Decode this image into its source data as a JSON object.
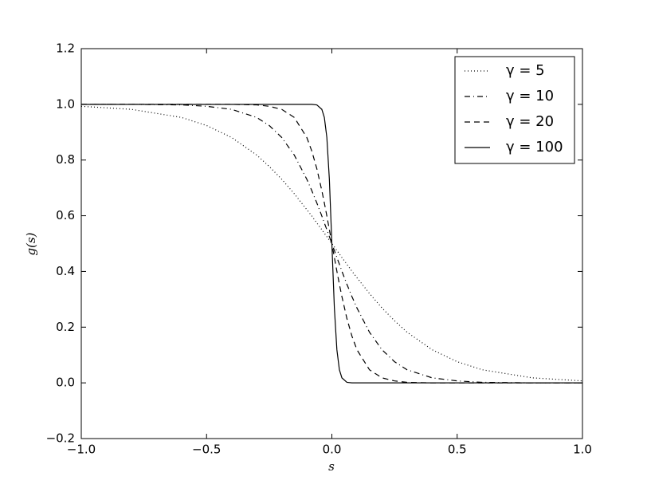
{
  "chart_data": {
    "type": "line",
    "xlabel": "s",
    "ylabel": "g(s)",
    "x": [
      -1,
      -0.8,
      -0.6,
      -0.5,
      -0.4,
      -0.3,
      -0.25,
      -0.2,
      -0.15,
      -0.1,
      -0.08,
      -0.06,
      -0.04,
      -0.03,
      -0.02,
      -0.01,
      0,
      0.01,
      0.02,
      0.03,
      0.04,
      0.06,
      0.08,
      0.1,
      0.15,
      0.2,
      0.25,
      0.3,
      0.4,
      0.5,
      0.6,
      0.8,
      1
    ],
    "series": [
      {
        "name": "γ = 5",
        "color": "#000000",
        "linestyle": "dotted",
        "values": [
          0.993,
          0.982,
          0.953,
          0.924,
          0.881,
          0.818,
          0.777,
          0.731,
          0.679,
          0.622,
          0.599,
          0.574,
          0.55,
          0.537,
          0.525,
          0.512,
          0.5,
          0.488,
          0.475,
          0.463,
          0.45,
          0.426,
          0.401,
          0.378,
          0.321,
          0.269,
          0.223,
          0.182,
          0.119,
          0.076,
          0.047,
          0.018,
          0.007
        ]
      },
      {
        "name": "γ = 10",
        "color": "#000000",
        "linestyle": "dashdot",
        "values": [
          1,
          1,
          0.998,
          0.993,
          0.982,
          0.953,
          0.924,
          0.881,
          0.818,
          0.731,
          0.69,
          0.646,
          0.599,
          0.574,
          0.55,
          0.525,
          0.5,
          0.475,
          0.45,
          0.426,
          0.401,
          0.354,
          0.31,
          0.269,
          0.182,
          0.119,
          0.076,
          0.047,
          0.018,
          0.007,
          0.002,
          0,
          0
        ]
      },
      {
        "name": "γ = 20",
        "color": "#000000",
        "linestyle": "dashed",
        "values": [
          1,
          1,
          1,
          1,
          1,
          0.998,
          0.993,
          0.982,
          0.953,
          0.881,
          0.832,
          0.769,
          0.69,
          0.646,
          0.599,
          0.55,
          0.5,
          0.45,
          0.401,
          0.354,
          0.31,
          0.231,
          0.168,
          0.119,
          0.047,
          0.018,
          0.007,
          0.002,
          0,
          0,
          0,
          0,
          0
        ]
      },
      {
        "name": "γ = 100",
        "color": "#000000",
        "linestyle": "solid",
        "values": [
          1,
          1,
          1,
          1,
          1,
          1,
          1,
          1,
          1,
          1,
          1,
          0.998,
          0.982,
          0.953,
          0.881,
          0.731,
          0.5,
          0.269,
          0.119,
          0.047,
          0.018,
          0.002,
          0,
          0,
          0,
          0,
          0,
          0,
          0,
          0,
          0,
          0,
          0
        ]
      }
    ],
    "xlim": [
      -1,
      1
    ],
    "xticks": [
      {
        "value": -1,
        "label": "−1.0"
      },
      {
        "value": -0.5,
        "label": "−0.5"
      },
      {
        "value": 0,
        "label": "0.0"
      },
      0.5,
      {
        "value": 1,
        "label": "1.0"
      }
    ],
    "ylim": [
      -0.2,
      1.2
    ],
    "yticks": [
      {
        "value": -0.2,
        "label": "−0.2"
      },
      {
        "value": 0,
        "label": "0.0"
      },
      0.2,
      0.4,
      0.6,
      0.8,
      {
        "value": 1,
        "label": "1.0"
      },
      1.2
    ],
    "grid": false,
    "legend": "upper right"
  }
}
